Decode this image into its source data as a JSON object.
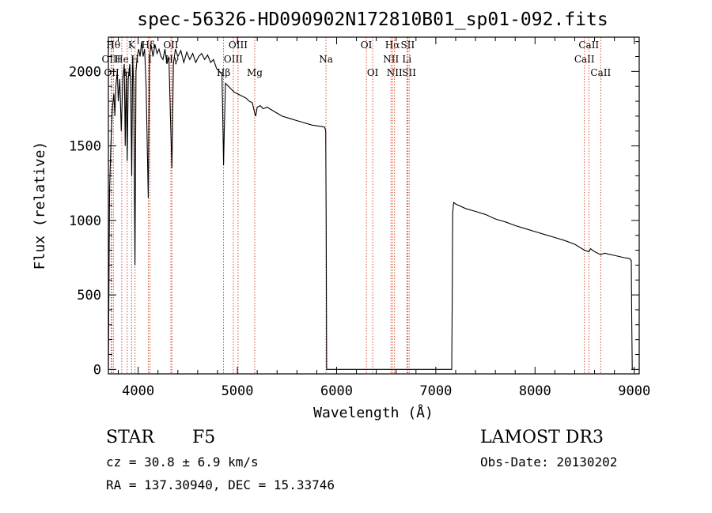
{
  "chart_data": {
    "type": "line",
    "title": "spec-56326-HD090902N172810B01_sp01-092.fits",
    "xlabel": "Wavelength (Å)",
    "ylabel": "Flux (relative)",
    "xlim": [
      3700,
      9050
    ],
    "ylim": [
      -30,
      2230
    ],
    "xticks": [
      4000,
      5000,
      6000,
      7000,
      8000,
      9000
    ],
    "yticks": [
      0,
      500,
      1000,
      1500,
      2000
    ],
    "series": [
      {
        "name": "flux",
        "points": [
          [
            3700,
            0
          ],
          [
            3712,
            1200
          ],
          [
            3725,
            1500
          ],
          [
            3740,
            1750
          ],
          [
            3755,
            1850
          ],
          [
            3765,
            1700
          ],
          [
            3775,
            1900
          ],
          [
            3790,
            2000
          ],
          [
            3800,
            1800
          ],
          [
            3815,
            1950
          ],
          [
            3830,
            1600
          ],
          [
            3845,
            1950
          ],
          [
            3860,
            2050
          ],
          [
            3870,
            1500
          ],
          [
            3880,
            2000
          ],
          [
            3890,
            1400
          ],
          [
            3900,
            1950
          ],
          [
            3915,
            2050
          ],
          [
            3925,
            1900
          ],
          [
            3935,
            1300
          ],
          [
            3945,
            2100
          ],
          [
            3955,
            1900
          ],
          [
            3968,
            700
          ],
          [
            3978,
            2000
          ],
          [
            3990,
            2100
          ],
          [
            4005,
            2150
          ],
          [
            4020,
            2100
          ],
          [
            4035,
            2200
          ],
          [
            4050,
            2100
          ],
          [
            4065,
            2150
          ],
          [
            4080,
            1900
          ],
          [
            4102,
            1150
          ],
          [
            4115,
            2100
          ],
          [
            4130,
            2180
          ],
          [
            4150,
            2100
          ],
          [
            4170,
            2180
          ],
          [
            4190,
            2120
          ],
          [
            4210,
            2150
          ],
          [
            4230,
            2100
          ],
          [
            4250,
            2080
          ],
          [
            4270,
            2150
          ],
          [
            4290,
            2050
          ],
          [
            4310,
            2100
          ],
          [
            4325,
            1700
          ],
          [
            4340,
            1350
          ],
          [
            4355,
            2050
          ],
          [
            4375,
            2150
          ],
          [
            4400,
            2100
          ],
          [
            4430,
            2140
          ],
          [
            4460,
            2060
          ],
          [
            4490,
            2130
          ],
          [
            4520,
            2080
          ],
          [
            4550,
            2120
          ],
          [
            4580,
            2060
          ],
          [
            4610,
            2100
          ],
          [
            4640,
            2120
          ],
          [
            4670,
            2080
          ],
          [
            4700,
            2110
          ],
          [
            4730,
            2060
          ],
          [
            4760,
            2080
          ],
          [
            4790,
            2020
          ],
          [
            4820,
            2000
          ],
          [
            4845,
            1980
          ],
          [
            4855,
            1600
          ],
          [
            4861,
            1370
          ],
          [
            4868,
            1600
          ],
          [
            4880,
            1920
          ],
          [
            4910,
            1900
          ],
          [
            4940,
            1880
          ],
          [
            4970,
            1860
          ],
          [
            5000,
            1850
          ],
          [
            5030,
            1840
          ],
          [
            5060,
            1830
          ],
          [
            5090,
            1820
          ],
          [
            5120,
            1800
          ],
          [
            5150,
            1790
          ],
          [
            5175,
            1720
          ],
          [
            5185,
            1700
          ],
          [
            5200,
            1760
          ],
          [
            5230,
            1770
          ],
          [
            5260,
            1750
          ],
          [
            5300,
            1760
          ],
          [
            5350,
            1740
          ],
          [
            5400,
            1720
          ],
          [
            5450,
            1700
          ],
          [
            5500,
            1690
          ],
          [
            5550,
            1680
          ],
          [
            5600,
            1670
          ],
          [
            5650,
            1660
          ],
          [
            5700,
            1650
          ],
          [
            5750,
            1640
          ],
          [
            5800,
            1635
          ],
          [
            5850,
            1630
          ],
          [
            5880,
            1625
          ],
          [
            5890,
            1600
          ],
          [
            5895,
            1000
          ],
          [
            5900,
            0
          ],
          [
            5905,
            0
          ],
          [
            7150,
            0
          ],
          [
            7160,
            0
          ],
          [
            7165,
            450
          ],
          [
            7170,
            1050
          ],
          [
            7180,
            1120
          ],
          [
            7200,
            1110
          ],
          [
            7300,
            1080
          ],
          [
            7400,
            1060
          ],
          [
            7500,
            1040
          ],
          [
            7600,
            1010
          ],
          [
            7700,
            990
          ],
          [
            7800,
            965
          ],
          [
            7900,
            945
          ],
          [
            8000,
            925
          ],
          [
            8100,
            905
          ],
          [
            8200,
            885
          ],
          [
            8300,
            865
          ],
          [
            8400,
            840
          ],
          [
            8498,
            800
          ],
          [
            8542,
            790
          ],
          [
            8560,
            810
          ],
          [
            8600,
            790
          ],
          [
            8662,
            770
          ],
          [
            8700,
            780
          ],
          [
            8800,
            765
          ],
          [
            8900,
            750
          ],
          [
            8950,
            745
          ],
          [
            8970,
            730
          ],
          [
            8975,
            300
          ],
          [
            8980,
            0
          ],
          [
            9000,
            0
          ]
        ]
      }
    ],
    "lines": [
      {
        "label": "Hθ",
        "x": 3750,
        "row": 0
      },
      {
        "label": "OIII",
        "x": 3728,
        "row": 1
      },
      {
        "label": "OII",
        "x": 3733,
        "row": 2
      },
      {
        "label": "He",
        "x": 3835,
        "row": 1
      },
      {
        "label": "H",
        "x": 3890,
        "row": 2
      },
      {
        "label": "K",
        "x": 3934,
        "row": 0
      },
      {
        "label": "H",
        "x": 3969,
        "row": 1
      },
      {
        "label": "Hδ",
        "x": 4102,
        "row": 0
      },
      {
        "label": "I",
        "x": 4120,
        "row": 1
      },
      {
        "label": "OII",
        "x": 4330,
        "row": 0
      },
      {
        "label": "Hγ",
        "x": 4340,
        "row": 1
      },
      {
        "label": "Hβ",
        "x": 4861,
        "row": 2
      },
      {
        "label": "OIII",
        "x": 4959,
        "row": 1
      },
      {
        "label": "OIII",
        "x": 5007,
        "row": 0
      },
      {
        "label": "Mg",
        "x": 5175,
        "row": 2
      },
      {
        "label": "Na",
        "x": 5893,
        "row": 1
      },
      {
        "label": "OI",
        "x": 6300,
        "row": 0
      },
      {
        "label": "OI",
        "x": 6364,
        "row": 2
      },
      {
        "label": "Hα",
        "x": 6563,
        "row": 0
      },
      {
        "label": "NII",
        "x": 6548,
        "row": 1
      },
      {
        "label": "NII",
        "x": 6584,
        "row": 2
      },
      {
        "label": "SII",
        "x": 6717,
        "row": 0
      },
      {
        "label": "Li",
        "x": 6708,
        "row": 1
      },
      {
        "label": "SII",
        "x": 6731,
        "row": 2
      },
      {
        "label": "CaII",
        "x": 8542,
        "row": 0
      },
      {
        "label": "CaII",
        "x": 8498,
        "row": 1
      },
      {
        "label": "CaII",
        "x": 8662,
        "row": 2
      }
    ]
  },
  "footer": {
    "object_type": "STAR",
    "subclass": "F5",
    "cz": "cz = 30.8 ± 6.9 km/s",
    "coords": "RA = 137.30940, DEC =  15.33746",
    "survey": "LAMOST DR3",
    "obs_date": "Obs-Date: 20130202"
  },
  "colors": {
    "line_marker": "#cc2200",
    "spectrum": "#000000"
  }
}
